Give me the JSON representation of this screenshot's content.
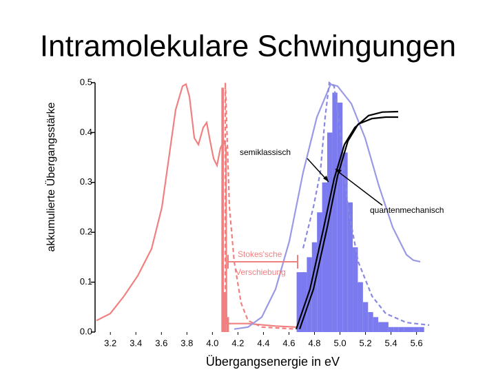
{
  "chart_data": {
    "type": "line",
    "title": "Intramolekulare Schwingungen",
    "xlabel": "Übergangsenergie in eV",
    "ylabel": "akkumulierte Übergangsstärke",
    "annotations": [
      "semiklassisch",
      "quantenmechanisch",
      "Stokes'sche",
      "Verschiebung"
    ],
    "xlim": [
      3.08,
      5.71
    ],
    "ylim": [
      0,
      0.5
    ],
    "xticks": [
      3.2,
      3.4,
      3.6,
      3.8,
      {
        "value": 4,
        "label": "4.0"
      },
      4.2,
      4.4,
      4.6,
      4.8,
      {
        "value": 5,
        "label": "5.0"
      },
      5.2,
      5.4,
      5.6
    ],
    "yticks": [
      {
        "value": 0,
        "label": "0.0"
      },
      0.1,
      0.2,
      0.3,
      0.4,
      0.5
    ],
    "series": [
      {
        "type": "histogram",
        "color": "#f08080",
        "bins": [
          4.07,
          4.09,
          4.11,
          4.13
        ],
        "values": [
          0.49,
          0.08,
          0.03
        ]
      },
      {
        "type": "histogram",
        "color": "#7b7bef",
        "bins": [
          4.66,
          4.7,
          4.74,
          4.78,
          4.82,
          4.86,
          4.9,
          4.94,
          4.98,
          5.02,
          5.06,
          5.1,
          5.14,
          5.18,
          5.22,
          5.26,
          5.3,
          5.34,
          5.38,
          5.42,
          5.46,
          5.5,
          5.54,
          5.58,
          5.62,
          5.66
        ],
        "values": [
          0.12,
          0.12,
          0.15,
          0.18,
          0.24,
          0.3,
          0.4,
          0.48,
          0.46,
          0.36,
          0.26,
          0.17,
          0.1,
          0.06,
          0.04,
          0.03,
          0.02,
          0.02,
          0.01,
          0.01,
          0.01,
          0.01,
          0.01,
          0.01,
          0.01
        ]
      },
      {
        "type": "line",
        "color": "#f08080",
        "dashed": false,
        "x": [
          3.091,
          3.199,
          3.307,
          3.415,
          3.523,
          3.604,
          3.658,
          3.712,
          3.766,
          3.793,
          3.82,
          3.858,
          3.89,
          3.928,
          3.955,
          3.982,
          4.009,
          4.036,
          4.063,
          4.09,
          4.106,
          4.111,
          4.279,
          4.495,
          4.657
        ],
        "values": [
          0.023,
          0.037,
          0.072,
          0.113,
          0.167,
          0.25,
          0.348,
          0.446,
          0.493,
          0.497,
          0.472,
          0.389,
          0.376,
          0.41,
          0.42,
          0.383,
          0.348,
          0.334,
          0.369,
          0.383,
          0.369,
          0.017,
          0.017,
          0.012,
          0.01
        ]
      },
      {
        "type": "line",
        "color": "#f08080",
        "dashed": true,
        "x": [
          4.101,
          4.101,
          4.133,
          4.171,
          4.225,
          4.279,
          4.387,
          4.657
        ],
        "values": [
          0.003,
          0.5,
          0.251,
          0.141,
          0.058,
          0.023,
          0.01,
          0.006
        ]
      },
      {
        "type": "line",
        "color": "#9999e6",
        "dashed": false,
        "x": [
          4.171,
          4.279,
          4.387,
          4.495,
          4.603,
          4.711,
          4.819,
          4.927,
          4.981,
          5.089,
          5.197,
          5.305,
          5.413,
          5.521,
          5.575,
          5.629
        ],
        "values": [
          0.006,
          0.01,
          0.03,
          0.086,
          0.182,
          0.32,
          0.431,
          0.497,
          0.493,
          0.458,
          0.389,
          0.293,
          0.21,
          0.155,
          0.144,
          0.141
        ]
      },
      {
        "type": "line",
        "color": "#8888e0",
        "dashed": true,
        "x": [
          4.711,
          4.792,
          4.846,
          4.884,
          4.916,
          4.954,
          5.008,
          5.062,
          5.143,
          5.251,
          5.359,
          5.521,
          5.7
        ],
        "values": [
          0.168,
          0.251,
          0.32,
          0.431,
          0.5,
          0.493,
          0.389,
          0.251,
          0.141,
          0.072,
          0.037,
          0.019,
          0.014
        ]
      },
      {
        "type": "line",
        "color": "#000000",
        "dashed": false,
        "x": [
          4.657,
          4.765,
          4.873,
          4.954,
          5.035,
          5.116,
          5.224,
          5.332,
          5.456
        ],
        "values": [
          0.006,
          0.086,
          0.21,
          0.307,
          0.376,
          0.41,
          0.434,
          0.441,
          0.442
        ]
      },
      {
        "type": "line",
        "color": "#000000",
        "dashed": false,
        "x": [
          4.684,
          4.792,
          4.9,
          4.981,
          5.062,
          5.143,
          5.251,
          5.359,
          5.456
        ],
        "values": [
          0.006,
          0.086,
          0.21,
          0.313,
          0.383,
          0.417,
          0.428,
          0.431,
          0.431
        ]
      }
    ]
  }
}
